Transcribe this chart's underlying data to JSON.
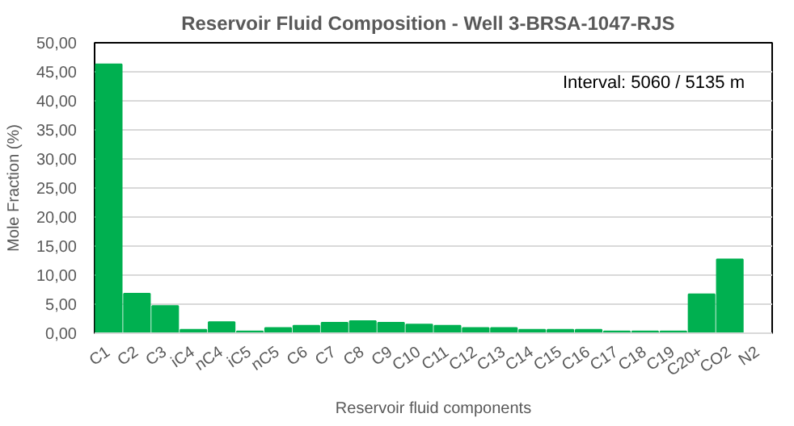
{
  "chart_data": {
    "type": "bar",
    "title": "Reservoir Fluid Composition  -  Well 3-BRSA-1047-RJS",
    "xlabel": "Reservoir fluid components",
    "ylabel": "Mole Fraction (%)",
    "annotations": [
      "Interval: 5060 / 5135  m"
    ],
    "categories": [
      "C1",
      "C2",
      "C3",
      "iC4",
      "nC4",
      "iC5",
      "nC5",
      "C6",
      "C7",
      "C8",
      "C9",
      "C10",
      "C11",
      "C12",
      "C13",
      "C14",
      "C15",
      "C16",
      "C17",
      "C18",
      "C19",
      "C20+",
      "CO2",
      "N2"
    ],
    "values": [
      46.3,
      6.8,
      4.7,
      0.6,
      1.9,
      0.3,
      0.9,
      1.3,
      1.8,
      2.1,
      1.8,
      1.5,
      1.3,
      0.9,
      0.9,
      0.6,
      0.6,
      0.6,
      0.3,
      0.3,
      0.3,
      6.7,
      12.7,
      0
    ],
    "color": "#00b050",
    "ylim": [
      0,
      50
    ],
    "yticks": [
      {
        "value": 0,
        "label": "0,00"
      },
      {
        "value": 5,
        "label": "5,00"
      },
      {
        "value": 10,
        "label": "10,00"
      },
      {
        "value": 15,
        "label": "15,00"
      },
      {
        "value": 20,
        "label": "20,00"
      },
      {
        "value": 25,
        "label": "25,00"
      },
      {
        "value": 30,
        "label": "30,00"
      },
      {
        "value": 35,
        "label": "35,00"
      },
      {
        "value": 40,
        "label": "40,00"
      },
      {
        "value": 45,
        "label": "45,00"
      },
      {
        "value": 50,
        "label": "50,00"
      }
    ],
    "grid": "y"
  }
}
